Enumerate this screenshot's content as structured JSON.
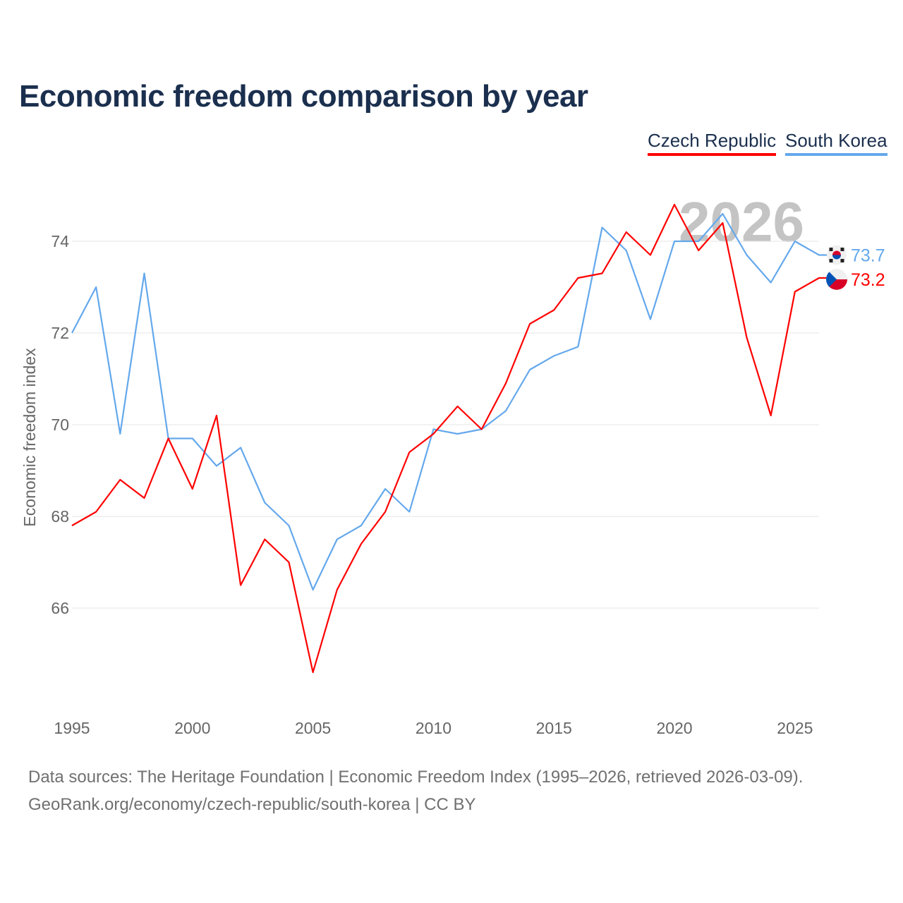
{
  "chart_data": {
    "type": "line",
    "title": "Economic freedom comparison by year",
    "xlabel": "",
    "ylabel": "Economic freedom index",
    "x": [
      1995,
      1996,
      1997,
      1998,
      1999,
      2000,
      2001,
      2002,
      2003,
      2004,
      2005,
      2006,
      2007,
      2008,
      2009,
      2010,
      2011,
      2012,
      2013,
      2014,
      2015,
      2016,
      2017,
      2018,
      2019,
      2020,
      2021,
      2022,
      2023,
      2024,
      2025,
      2026
    ],
    "xticks": [
      "1995",
      "2000",
      "2005",
      "2010",
      "2015",
      "2020",
      "2025"
    ],
    "yticks": [
      "66",
      "68",
      "70",
      "72",
      "74"
    ],
    "xlim": [
      1995,
      2026
    ],
    "ylim": [
      64,
      75.5
    ],
    "grid": true,
    "legend_position": "top-right",
    "year_watermark": "2026",
    "series": [
      {
        "name": "Czech Republic",
        "color": "#ff0000",
        "end_label": "73.2",
        "values": [
          67.8,
          68.1,
          68.8,
          68.4,
          69.7,
          68.6,
          70.2,
          66.5,
          67.5,
          67.0,
          64.6,
          66.4,
          67.4,
          68.1,
          69.4,
          69.8,
          70.4,
          69.9,
          70.9,
          72.2,
          72.5,
          73.2,
          73.3,
          74.2,
          73.7,
          74.8,
          73.8,
          74.4,
          71.9,
          70.2,
          72.9,
          73.2
        ]
      },
      {
        "name": "South Korea",
        "color": "#64a8ec",
        "end_label": "73.7",
        "values": [
          72.0,
          73.0,
          69.8,
          73.3,
          69.7,
          69.7,
          69.1,
          69.5,
          68.3,
          67.8,
          66.4,
          67.5,
          67.8,
          68.6,
          68.1,
          69.9,
          69.8,
          69.9,
          70.3,
          71.2,
          71.5,
          71.7,
          74.3,
          73.8,
          72.3,
          74.0,
          74.0,
          74.6,
          73.7,
          73.1,
          74.0,
          73.7
        ]
      }
    ]
  },
  "footer": {
    "line1": "Data sources: The Heritage Foundation | Economic Freedom Index (1995–2026, retrieved 2026-03-09).",
    "line2": "GeoRank.org/economy/czech-republic/south-korea | CC BY"
  }
}
